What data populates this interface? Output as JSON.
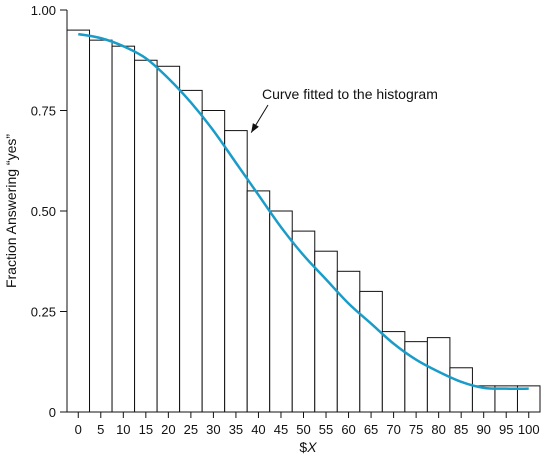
{
  "chart_data": {
    "type": "bar",
    "title": "",
    "xlabel_prefix": "$",
    "xlabel_var": "X",
    "ylabel": "Fraction Answering “yes”",
    "categories": [
      "0",
      "5",
      "10",
      "15",
      "20",
      "25",
      "30",
      "35",
      "40",
      "45",
      "50",
      "55",
      "60",
      "65",
      "70",
      "75",
      "80",
      "85",
      "90",
      "95",
      "100"
    ],
    "values": [
      0.95,
      0.925,
      0.91,
      0.875,
      0.86,
      0.8,
      0.75,
      0.7,
      0.55,
      0.5,
      0.45,
      0.4,
      0.35,
      0.3,
      0.2,
      0.175,
      0.185,
      0.11,
      0.065,
      0.065,
      0.065
    ],
    "yticks": [
      "0",
      "0.25",
      "0.50",
      "0.75",
      "1.00"
    ],
    "ylim": [
      0,
      1
    ],
    "grid": false,
    "bar_fill": "#ffffff",
    "bar_stroke": "#111111",
    "curve": {
      "color": "#1a9cc9",
      "x": [
        0,
        5,
        10,
        15,
        20,
        25,
        30,
        35,
        40,
        45,
        50,
        55,
        60,
        65,
        70,
        75,
        80,
        85,
        90,
        95,
        100
      ],
      "y": [
        0.94,
        0.93,
        0.91,
        0.88,
        0.83,
        0.77,
        0.7,
        0.62,
        0.54,
        0.46,
        0.39,
        0.33,
        0.27,
        0.22,
        0.17,
        0.13,
        0.1,
        0.075,
        0.06,
        0.058,
        0.058
      ]
    },
    "annotation": {
      "text": "Curve fitted to the histogram",
      "target_x": 37.5,
      "target_y": 0.69
    }
  }
}
